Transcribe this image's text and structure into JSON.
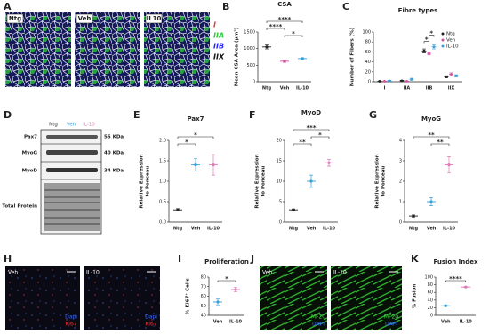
{
  "figure": {
    "A": {
      "panel": "A",
      "images": [
        "Ntg",
        "Veh",
        "IL10"
      ],
      "legend": [
        {
          "label": "I",
          "color": "#e53935"
        },
        {
          "label": "IIA",
          "color": "#2ecc40"
        },
        {
          "label": "IIB",
          "color": "#2424ff"
        },
        {
          "label": "IIX",
          "color": "#111111"
        }
      ]
    },
    "D": {
      "panel": "D",
      "lanes": [
        {
          "label": "Ntg",
          "color": "#222222"
        },
        {
          "label": "Veh",
          "color": "#3aa0d8"
        },
        {
          "label": "IL-10",
          "color": "#e07ab8"
        }
      ],
      "rows": [
        {
          "label": "Pax7",
          "size": "55 KDa"
        },
        {
          "label": "MyoG",
          "size": "40 KDa"
        },
        {
          "label": "MyoD",
          "size": "34 KDa"
        },
        {
          "label": "Total Protein"
        }
      ]
    },
    "H": {
      "panel": "H",
      "images": [
        "Veh",
        "IL-10"
      ],
      "stains": [
        {
          "label": "Dapi",
          "color": "#3b6cff"
        },
        {
          "label": "Ki67",
          "color": "#ff3030"
        }
      ]
    },
    "J": {
      "panel": "J",
      "images": [
        "Veh",
        "IL-10"
      ],
      "stains": [
        {
          "label": "MF20",
          "color": "#3ddc3d"
        },
        {
          "label": "DAPI",
          "color": "#3b6cff"
        }
      ]
    }
  },
  "chart_data": [
    {
      "panel": "B",
      "type": "dot",
      "title": "CSA",
      "ylabel": [
        "Mean CSA Area (µm²)"
      ],
      "categories": [
        "Ntg",
        "Veh",
        "IL-10"
      ],
      "values": [
        1050,
        620,
        700
      ],
      "errors": [
        60,
        35,
        25
      ],
      "colors": [
        "#222222",
        "#d64fa0",
        "#3aa0d8"
      ],
      "ylim": [
        0,
        1500
      ],
      "yticks": [
        0,
        500,
        1000,
        1500
      ],
      "significance": [
        {
          "pair": [
            "Veh",
            "IL-10"
          ],
          "label": "*"
        },
        {
          "pair": [
            "Ntg",
            "Veh"
          ],
          "label": "****"
        },
        {
          "pair": [
            "Ntg",
            "IL-10"
          ],
          "label": "****"
        }
      ]
    },
    {
      "panel": "C",
      "type": "grouped-dot",
      "title": "Fibre types",
      "ylabel": [
        "Number of Fibers (%)"
      ],
      "categories": [
        "I",
        "IIA",
        "IIB",
        "IIX"
      ],
      "series": [
        {
          "name": "Ntg",
          "color": "#222222",
          "values": [
            1,
            2,
            62,
            10
          ],
          "errors": [
            0.5,
            1,
            4,
            2
          ]
        },
        {
          "name": "Veh",
          "color": "#d64fa0",
          "values": [
            1,
            1,
            57,
            15
          ],
          "errors": [
            0.5,
            0.5,
            3,
            3
          ]
        },
        {
          "name": "IL-10",
          "color": "#3aa0d8",
          "values": [
            2,
            5,
            70,
            12
          ],
          "errors": [
            1,
            2,
            4,
            2
          ]
        }
      ],
      "ylim": [
        0,
        100
      ],
      "yticks": [
        0,
        20,
        40,
        60,
        80,
        100
      ],
      "legend": "top-right",
      "significance": [
        {
          "category": "IIB",
          "pair": [
            "Ntg",
            "Veh"
          ],
          "label": "*"
        },
        {
          "category": "IIB",
          "pair": [
            "Veh",
            "IL-10"
          ],
          "label": "*"
        }
      ]
    },
    {
      "panel": "E",
      "type": "dot",
      "title": "Pax7",
      "ylabel": [
        "Relative Expression",
        "to Ponceau"
      ],
      "categories": [
        "Ntg",
        "Veh",
        "IL-10"
      ],
      "values": [
        0.3,
        1.4,
        1.4
      ],
      "errors": [
        0.03,
        0.15,
        0.25
      ],
      "colors": [
        "#222222",
        "#3aa0d8",
        "#e07ab8"
      ],
      "ylim": [
        0,
        2
      ],
      "yticks": [
        {
          "value": 0,
          "label": "0.0"
        },
        0.5,
        {
          "value": 1,
          "label": "1.0"
        },
        1.5,
        {
          "value": 2,
          "label": "2.0"
        }
      ],
      "significance": [
        {
          "pair": [
            "Ntg",
            "Veh"
          ],
          "label": "*"
        },
        {
          "pair": [
            "Ntg",
            "IL-10"
          ],
          "label": "*"
        }
      ]
    },
    {
      "panel": "F",
      "type": "dot",
      "title": "MyoD",
      "ylabel": [
        "Relative Expression",
        "to Ponceau"
      ],
      "categories": [
        "Ntg",
        "Veh",
        "IL-10"
      ],
      "values": [
        3,
        10,
        14.5
      ],
      "errors": [
        0.2,
        1.5,
        0.8
      ],
      "colors": [
        "#222222",
        "#3aa0d8",
        "#e07ab8"
      ],
      "ylim": [
        0,
        20
      ],
      "yticks": [
        0,
        5,
        10,
        15,
        20
      ],
      "significance": [
        {
          "pair": [
            "Ntg",
            "Veh"
          ],
          "label": "**"
        },
        {
          "pair": [
            "Veh",
            "IL-10"
          ],
          "label": "*"
        },
        {
          "pair": [
            "Ntg",
            "IL-10"
          ],
          "label": "***"
        }
      ]
    },
    {
      "panel": "G",
      "type": "dot",
      "title": "MyoG",
      "ylabel": [
        "Relative Expression",
        "to Ponceau"
      ],
      "categories": [
        "Ntg",
        "Veh",
        "IL-10"
      ],
      "values": [
        0.3,
        1.0,
        2.8
      ],
      "errors": [
        0.05,
        0.2,
        0.4
      ],
      "colors": [
        "#222222",
        "#3aa0d8",
        "#e07ab8"
      ],
      "ylim": [
        0,
        4
      ],
      "yticks": [
        0,
        1,
        2,
        3,
        4
      ],
      "significance": [
        {
          "pair": [
            "Veh",
            "IL-10"
          ],
          "label": "**"
        },
        {
          "pair": [
            "Ntg",
            "IL-10"
          ],
          "label": "**"
        }
      ]
    },
    {
      "panel": "I",
      "type": "dot",
      "title": "Proliferation",
      "ylabel": [
        "% Ki67⁺ Cells"
      ],
      "categories": [
        "Veh",
        "IL-10"
      ],
      "values": [
        54,
        67
      ],
      "errors": [
        3,
        2.5
      ],
      "colors": [
        "#3aa0d8",
        "#e07ab8"
      ],
      "ylim": [
        40,
        80
      ],
      "yticks": [
        40,
        50,
        60,
        70,
        80
      ],
      "significance": [
        {
          "pair": [
            "Veh",
            "IL-10"
          ],
          "label": "*"
        }
      ]
    },
    {
      "panel": "K",
      "type": "dot",
      "title": "Fusion Index",
      "ylabel": [
        "% Fusion"
      ],
      "categories": [
        "Veh",
        "IL-10"
      ],
      "values": [
        25,
        74
      ],
      "errors": [
        1.5,
        1.5
      ],
      "colors": [
        "#3aa0d8",
        "#e07ab8"
      ],
      "ylim": [
        0,
        100
      ],
      "yticks": [
        0,
        20,
        40,
        60,
        80,
        100
      ],
      "significance": [
        {
          "pair": [
            "Veh",
            "IL-10"
          ],
          "label": "****"
        }
      ]
    }
  ]
}
